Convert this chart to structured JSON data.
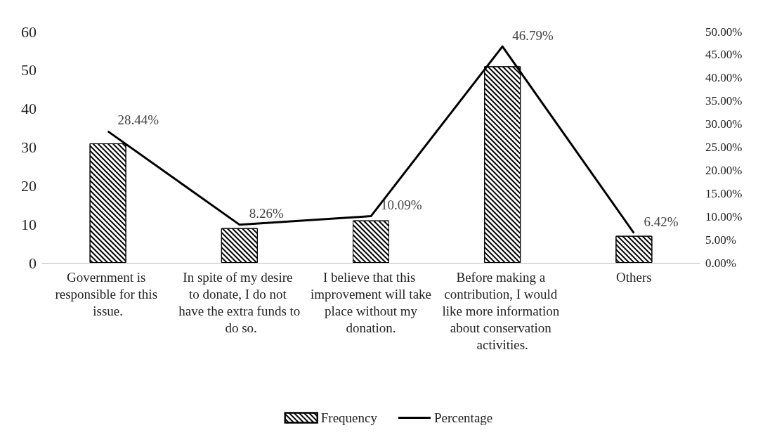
{
  "chart_data": {
    "type": "bar",
    "categories": [
      "Government is responsible for this issue.",
      "In spite of my desire to donate, I do not have the extra funds to do so.",
      "I believe that this improvement will take place without my donation.",
      "Before making a contribution, I would like more information about conservation activities.",
      "Others"
    ],
    "series": [
      {
        "name": "Frequency",
        "color": "#000000",
        "values": [
          31,
          9,
          11,
          51,
          7
        ]
      },
      {
        "name": "Percentage",
        "type": "line",
        "axis": "y2",
        "color": "#000000",
        "values": [
          28.44,
          8.26,
          10.09,
          46.79,
          6.42
        ],
        "value_labels": [
          "28.44%",
          "8.26%",
          "10.09%",
          "46.79%",
          "6.42%"
        ]
      }
    ],
    "ylim": [
      0,
      60
    ],
    "yticks": [
      0,
      10,
      20,
      30,
      40,
      50,
      60
    ],
    "y2lim": [
      0,
      50
    ],
    "y2ticks": [
      {
        "value": 0,
        "label": "0.00%"
      },
      {
        "value": 5,
        "label": "5.00%"
      },
      {
        "value": 10,
        "label": "10.00%"
      },
      {
        "value": 15,
        "label": "15.00%"
      },
      {
        "value": 20,
        "label": "20.00%"
      },
      {
        "value": 25,
        "label": "25.00%"
      },
      {
        "value": 30,
        "label": "30.00%"
      },
      {
        "value": 35,
        "label": "35.00%"
      },
      {
        "value": 40,
        "label": "40.00%"
      },
      {
        "value": 45,
        "label": "45.00%"
      },
      {
        "value": 50,
        "label": "50.00%"
      }
    ],
    "grid": false,
    "legend": "bottom",
    "marker": "none",
    "line_style": "solid"
  }
}
